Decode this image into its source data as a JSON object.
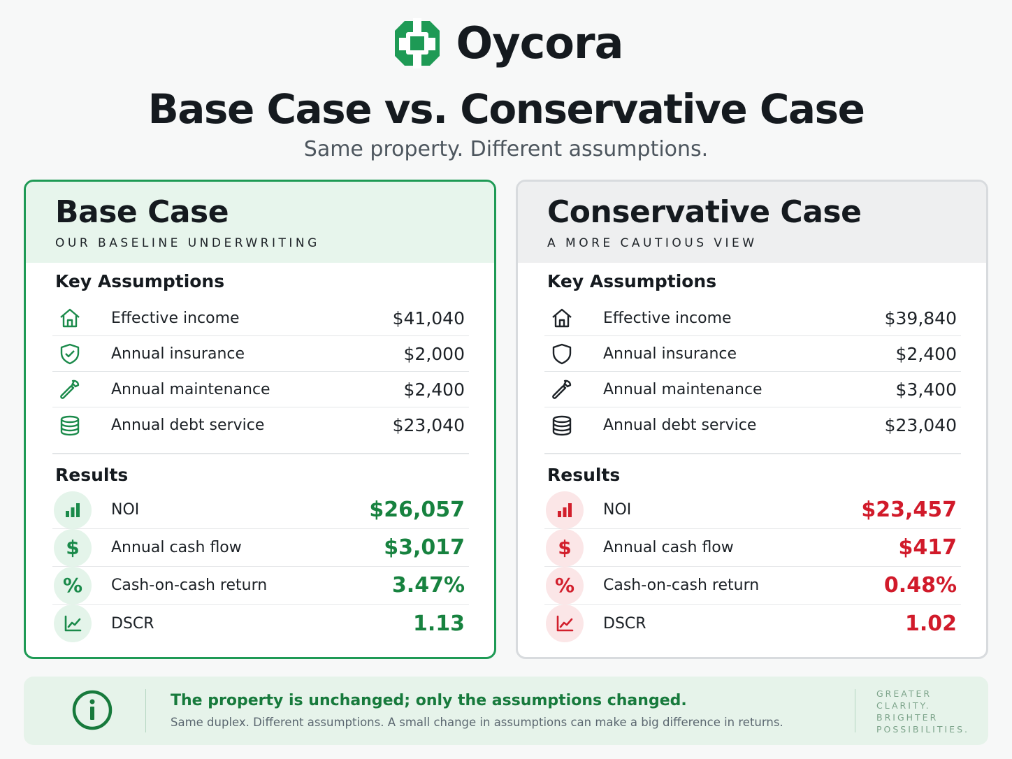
{
  "brand": {
    "name": "Oycora"
  },
  "title": "Base Case vs. Conservative Case",
  "subtitle": "Same property. Different assumptions.",
  "colors": {
    "green": "#1e9a55",
    "red": "#d11a2a",
    "dark": "#151a1f"
  },
  "base": {
    "title": "Base Case",
    "tag": "OUR BASELINE UNDERWRITING",
    "assumptions_title": "Key Assumptions",
    "assumptions": [
      {
        "icon": "home-icon",
        "label": "Effective income",
        "value": "$41,040"
      },
      {
        "icon": "shield-check-icon",
        "label": "Annual insurance",
        "value": "$2,000"
      },
      {
        "icon": "wrench-icon",
        "label": "Annual maintenance",
        "value": "$2,400"
      },
      {
        "icon": "database-icon",
        "label": "Annual debt service",
        "value": "$23,040"
      }
    ],
    "results_title": "Results",
    "results": [
      {
        "icon": "bar-chart-icon",
        "label": "NOI",
        "value": "$26,057"
      },
      {
        "icon": "dollar-icon",
        "label": "Annual cash flow",
        "value": "$3,017"
      },
      {
        "icon": "percent-icon",
        "label": "Cash-on-cash return",
        "value": "3.47%"
      },
      {
        "icon": "trend-chart-icon",
        "label": "DSCR",
        "value": "1.13"
      }
    ]
  },
  "conservative": {
    "title": "Conservative Case",
    "tag": "A MORE CAUTIOUS VIEW",
    "assumptions_title": "Key Assumptions",
    "assumptions": [
      {
        "icon": "home-icon",
        "label": "Effective income",
        "value": "$39,840"
      },
      {
        "icon": "shield-icon",
        "label": "Annual insurance",
        "value": "$2,400"
      },
      {
        "icon": "wrench-icon",
        "label": "Annual maintenance",
        "value": "$3,400"
      },
      {
        "icon": "database-icon",
        "label": "Annual debt service",
        "value": "$23,040"
      }
    ],
    "results_title": "Results",
    "results": [
      {
        "icon": "bar-chart-icon",
        "label": "NOI",
        "value": "$23,457"
      },
      {
        "icon": "dollar-icon",
        "label": "Annual cash flow",
        "value": "$417"
      },
      {
        "icon": "percent-icon",
        "label": "Cash-on-cash return",
        "value": "0.48%"
      },
      {
        "icon": "trend-chart-icon",
        "label": "DSCR",
        "value": "1.02"
      }
    ]
  },
  "footer": {
    "title": "The property is unchanged; only the assumptions changed.",
    "text": "Same duplex. Different assumptions. A small change in assumptions can make a big difference in returns.",
    "tagline": [
      "GREATER",
      "CLARITY.",
      "BRIGHTER",
      "POSSIBILITIES."
    ]
  }
}
